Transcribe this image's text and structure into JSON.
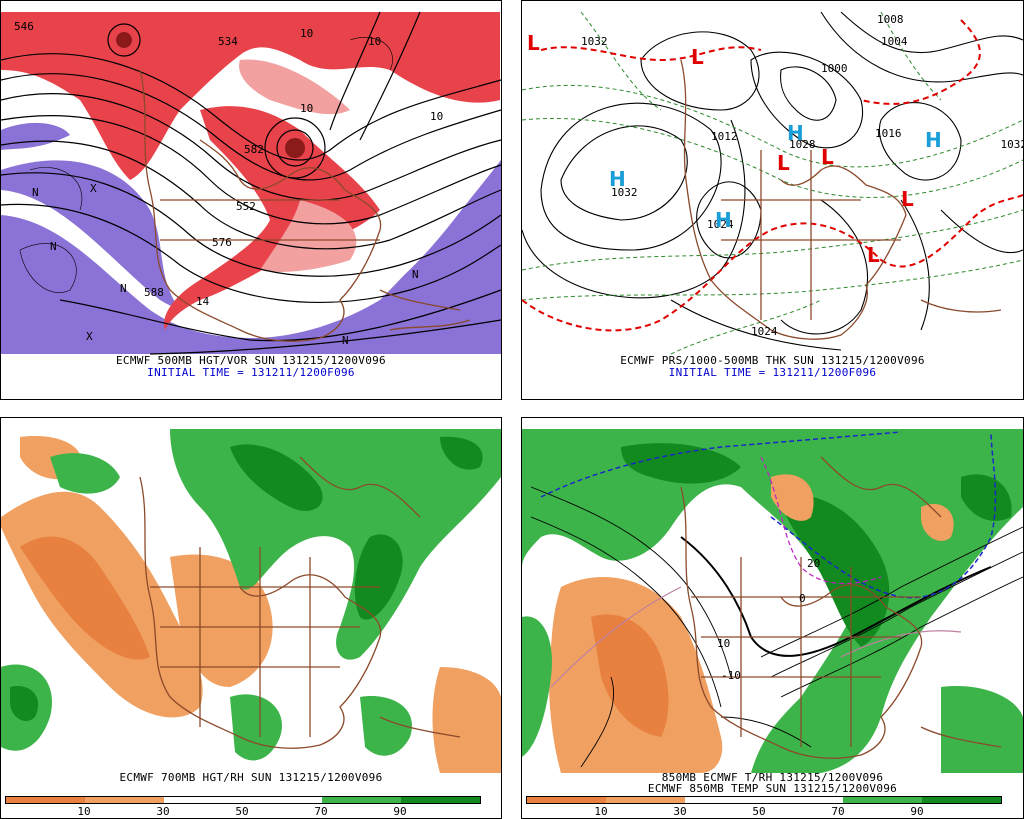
{
  "panels": [
    {
      "id": "p1",
      "caption": "ECMWF 500MB HGT/VOR SUN 131215/1200V096",
      "subcaption": "INITIAL TIME = 131211/1200F096",
      "contour_labels": [
        "546",
        "588",
        "576",
        "552",
        "10",
        "10",
        "10",
        "10",
        "14",
        "582",
        "534"
      ],
      "marks": [
        "N",
        "N",
        "N",
        "N",
        "N",
        "X",
        "X"
      ]
    },
    {
      "id": "p2",
      "caption": "ECMWF PRS/1000-500MB THK SUN 131215/1200V096",
      "subcaption": "INITIAL TIME = 131211/1200F096",
      "contour_labels": [
        "1032",
        "1032",
        "1024",
        "1028",
        "1008",
        "1004",
        "1000",
        "1016",
        "1012",
        "1032",
        "1024"
      ],
      "pressure_centers": [
        "H",
        "H",
        "H",
        "H",
        "L",
        "L",
        "L",
        "L",
        "L",
        "L"
      ]
    },
    {
      "id": "p3",
      "caption": "ECMWF 700MB HGT/RH SUN 131215/1200V096",
      "subcaption": "",
      "colorbar_ticks": [
        "10",
        "30",
        "50",
        "70",
        "90"
      ]
    },
    {
      "id": "p4",
      "caption": "850MB ECMWF T/RH 131215/1200V096",
      "subcaption": "ECMWF 850MB TEMP SUN 131215/1200V096",
      "contour_labels": [
        "10",
        "20",
        "0",
        "-10"
      ],
      "colorbar_ticks": [
        "10",
        "30",
        "50",
        "70",
        "90"
      ]
    }
  ],
  "colors": {
    "vorticity_positive": "#e8434a",
    "vorticity_light": "#f2a0a0",
    "vorticity_negative": "#8a72d6",
    "rh_dry": "#f0a060",
    "rh_drier": "#e88040",
    "rh_moist": "#3cb44a",
    "rh_wet": "#128a20",
    "coastline": "#8b4a2b",
    "thickness_dashed": "#2e8b2e",
    "thickness_540": "#e00000",
    "high_center": "#1a9ed8",
    "low_center": "#e00000",
    "freezing_line": "#1a28c8",
    "temp_magenta": "#c020c0"
  },
  "colorbar_segments": [
    "#e88040",
    "#f0a060",
    "#ffffff",
    "#ffffff",
    "#3cb44a",
    "#128a20"
  ]
}
